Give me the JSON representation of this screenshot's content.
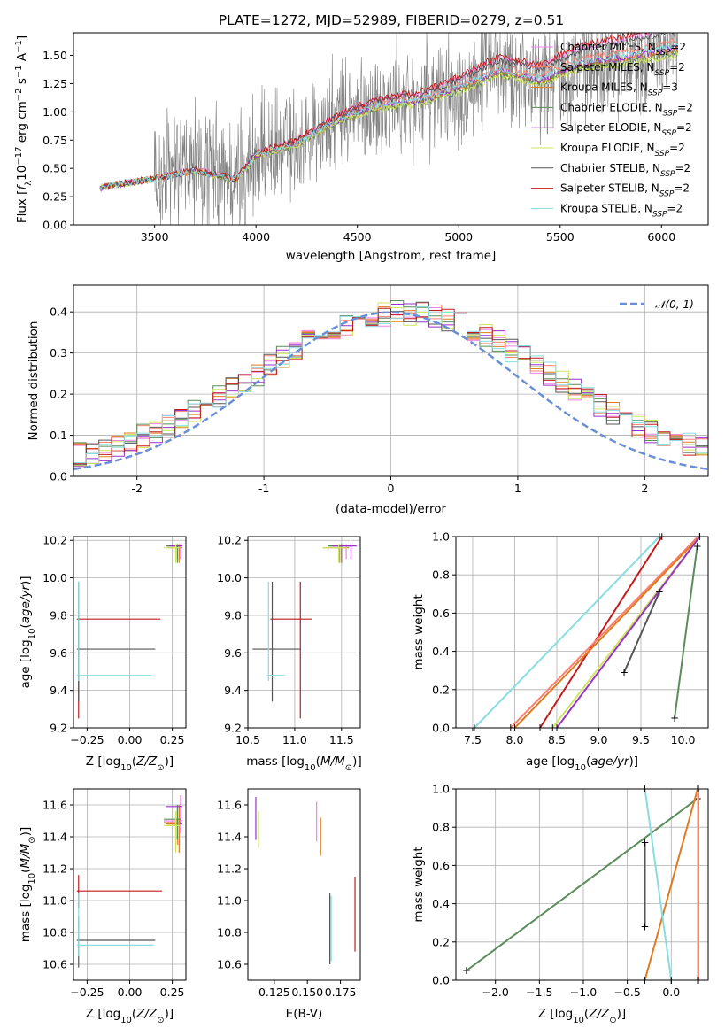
{
  "title": "PLATE=1272, MJD=52989, FIBERID=0279, z=0.51",
  "models": [
    {
      "name": "Chabrier MILES",
      "nssp": "2",
      "color": "#ee82ee"
    },
    {
      "name": "Salpeter MILES",
      "nssp": "2",
      "color": "#fa8072"
    },
    {
      "name": "Kroupa MILES",
      "nssp": "3",
      "color": "#e07b20"
    },
    {
      "name": "Chabrier ELODIE",
      "nssp": "2",
      "color": "#5b8c5a"
    },
    {
      "name": "Salpeter ELODIE",
      "nssp": "2",
      "color": "#9932cc"
    },
    {
      "name": "Kroupa ELODIE",
      "nssp": "2",
      "color": "#cfe55a"
    },
    {
      "name": "Chabrier STELIB",
      "nssp": "2",
      "color": "#555555"
    },
    {
      "name": "Salpeter STELIB",
      "nssp": "2",
      "color": "#c41a1a"
    },
    {
      "name": "Kroupa STELIB",
      "nssp": "2",
      "color": "#87dde0"
    }
  ],
  "chart_data": [
    {
      "id": "spectrum",
      "type": "line",
      "xlabel": "wavelength [Angstrom, rest frame]",
      "ylabel": "Flux [f_λ 10^-17 erg cm^-2 s^-1 A^-1]",
      "xlim": [
        3100,
        6230
      ],
      "ylim": [
        0,
        1.7
      ],
      "xticks": [
        3500,
        4000,
        4500,
        5000,
        5500,
        6000
      ],
      "yticks": [
        0.0,
        0.25,
        0.5,
        0.75,
        1.0,
        1.25,
        1.5
      ],
      "ytick_labels": [
        "0.00",
        "0.25",
        "0.50",
        "0.75",
        "1.00",
        "1.25",
        "1.50"
      ],
      "data_series": {
        "name": "data",
        "color": "#808080",
        "x_range": [
          3230,
          6080
        ]
      },
      "model_anchor_points": [
        [
          3230,
          0.33
        ],
        [
          3500,
          0.41
        ],
        [
          3700,
          0.48
        ],
        [
          3900,
          0.4
        ],
        [
          4000,
          0.62
        ],
        [
          4200,
          0.72
        ],
        [
          4400,
          0.93
        ],
        [
          4600,
          1.06
        ],
        [
          4800,
          1.1
        ],
        [
          5000,
          1.22
        ],
        [
          5200,
          1.38
        ],
        [
          5400,
          1.3
        ],
        [
          5600,
          1.45
        ],
        [
          5800,
          1.5
        ],
        [
          6080,
          1.6
        ]
      ],
      "legend_position": "right"
    },
    {
      "id": "residuals",
      "type": "line",
      "xlabel": "(data-model)/error",
      "ylabel": "Normed distribution",
      "xlim": [
        -2.5,
        2.5
      ],
      "ylim": [
        0,
        0.465
      ],
      "xticks": [
        -2,
        -1,
        0,
        1,
        2
      ],
      "yticks": [
        0.0,
        0.1,
        0.2,
        0.3,
        0.4
      ],
      "ytick_labels": [
        "0.0",
        "0.1",
        "0.2",
        "0.3",
        "0.4"
      ],
      "bin_width": 0.1,
      "reference_curve": {
        "name": "𝒩(0, 1)",
        "color": "#6a8fd8",
        "style": "dashed"
      },
      "legend_position": "top-right"
    },
    {
      "id": "age-vs-Z",
      "type": "scatter",
      "xlabel": "Z [log10(Z/Z⊙)]",
      "ylabel": "age [log10(age/yr)]",
      "xlim": [
        -0.33,
        0.33
      ],
      "ylim": [
        9.2,
        10.22
      ],
      "xticks": [
        -0.25,
        0.0,
        0.25
      ],
      "xtick_labels": [
        "−0.25",
        "0.00",
        "0.25"
      ],
      "yticks": [
        9.2,
        9.4,
        9.6,
        9.8,
        10.0,
        10.2
      ],
      "ytick_labels": [
        "9.2",
        "9.4",
        "9.6",
        "9.8",
        "10.0",
        "10.2"
      ]
    },
    {
      "id": "age-vs-mass",
      "type": "scatter",
      "xlabel": "mass [log10(M/M⊙)]",
      "ylabel": "",
      "xlim": [
        10.5,
        11.7
      ],
      "ylim": [
        9.2,
        10.22
      ],
      "xticks": [
        10.5,
        11.0,
        11.5
      ],
      "xtick_labels": [
        "10.5",
        "11.0",
        "11.5"
      ],
      "yticks": [
        9.2,
        9.4,
        9.6,
        9.8,
        10.0,
        10.2
      ],
      "ytick_labels": [
        "9.2",
        "9.4",
        "9.6",
        "9.8",
        "10.0",
        "10.2"
      ]
    },
    {
      "id": "mass-weight-vs-age",
      "type": "line",
      "xlabel": "age [log10(age/yr)]",
      "ylabel": "mass weight",
      "xlim": [
        7.3,
        10.3
      ],
      "ylim": [
        0,
        1
      ],
      "xticks": [
        7.5,
        8.0,
        8.5,
        9.0,
        9.5,
        10.0
      ],
      "xtick_labels": [
        "7.5",
        "8.0",
        "8.5",
        "9.0",
        "9.5",
        "10.0"
      ],
      "yticks": [
        0.0,
        0.2,
        0.4,
        0.6,
        0.8,
        1.0
      ],
      "ytick_labels": [
        "0.0",
        "0.2",
        "0.4",
        "0.6",
        "0.8",
        "1.0"
      ],
      "series": [
        {
          "model": 8,
          "points": [
            [
              7.52,
              0.0
            ],
            [
              9.72,
              1.0
            ]
          ]
        },
        {
          "model": 7,
          "points": [
            [
              8.3,
              0.0
            ],
            [
              9.75,
              1.0
            ]
          ]
        },
        {
          "model": 1,
          "points": [
            [
              7.95,
              0.0
            ],
            [
              10.18,
              1.0
            ]
          ]
        },
        {
          "model": 2,
          "points": [
            [
              8.0,
              0.0
            ],
            [
              10.2,
              1.0
            ]
          ]
        },
        {
          "model": 5,
          "points": [
            [
              8.45,
              0.0
            ],
            [
              10.2,
              1.0
            ]
          ]
        },
        {
          "model": 4,
          "points": [
            [
              8.5,
              0.0
            ],
            [
              10.2,
              1.0
            ]
          ]
        },
        {
          "model": 6,
          "points": [
            [
              9.3,
              0.29
            ],
            [
              9.72,
              0.71
            ]
          ]
        },
        {
          "model": 3,
          "points": [
            [
              9.9,
              0.05
            ],
            [
              10.17,
              0.95
            ]
          ]
        }
      ]
    },
    {
      "id": "mass-vs-Z",
      "type": "scatter",
      "xlabel": "Z [log10(Z/Z⊙)]",
      "ylabel": "mass [log10(M/M⊙)]",
      "xlim": [
        -0.33,
        0.33
      ],
      "ylim": [
        10.5,
        11.7
      ],
      "xticks": [
        -0.25,
        0.0,
        0.25
      ],
      "xtick_labels": [
        "−0.25",
        "0.00",
        "0.25"
      ],
      "yticks": [
        10.6,
        10.8,
        11.0,
        11.2,
        11.4,
        11.6
      ],
      "ytick_labels": [
        "10.6",
        "10.8",
        "11.0",
        "11.2",
        "11.4",
        "11.6"
      ]
    },
    {
      "id": "mass-vs-EBV",
      "type": "scatter",
      "xlabel": "E(B-V)",
      "ylabel": "",
      "xlim": [
        0.105,
        0.19
      ],
      "ylim": [
        10.5,
        11.7
      ],
      "xticks": [
        0.125,
        0.15,
        0.175
      ],
      "xtick_labels": [
        "0.125",
        "0.150",
        "0.175"
      ],
      "yticks": [
        10.6,
        10.8,
        11.0,
        11.2,
        11.4,
        11.6
      ],
      "ytick_labels": [
        "10.6",
        "10.8",
        "11.0",
        "11.2",
        "11.4",
        "11.6"
      ]
    },
    {
      "id": "mass-weight-vs-Z",
      "type": "line",
      "xlabel": "Z [log10(Z/Z⊙)]",
      "ylabel": "mass weight",
      "xlim": [
        -2.45,
        0.42
      ],
      "ylim": [
        0,
        1
      ],
      "xticks": [
        -2.0,
        -1.5,
        -1.0,
        -0.5,
        0.0
      ],
      "xtick_labels": [
        "−2.0",
        "−1.5",
        "−1.0",
        "−0.5",
        "0.0"
      ],
      "yticks": [
        0.0,
        0.2,
        0.4,
        0.6,
        0.8,
        1.0
      ],
      "ytick_labels": [
        "0.0",
        "0.2",
        "0.4",
        "0.6",
        "0.8",
        "1.0"
      ],
      "series": [
        {
          "model": 3,
          "points": [
            [
              -2.33,
              0.05
            ],
            [
              0.3,
              0.95
            ]
          ]
        },
        {
          "model": 2,
          "points": [
            [
              -0.3,
              0.0
            ],
            [
              0.3,
              1.0
            ]
          ]
        },
        {
          "model": 8,
          "points": [
            [
              -0.3,
              1.0
            ],
            [
              0.0,
              0.0
            ]
          ]
        },
        {
          "model": 6,
          "points": [
            [
              -0.3,
              0.28
            ],
            [
              -0.3,
              0.72
            ]
          ]
        },
        {
          "model": 5,
          "points": [
            [
              0.3,
              0.0
            ],
            [
              0.3,
              1.0
            ]
          ]
        },
        {
          "model": 1,
          "points": [
            [
              0.31,
              0.0
            ],
            [
              0.31,
              1.0
            ]
          ]
        }
      ]
    }
  ]
}
